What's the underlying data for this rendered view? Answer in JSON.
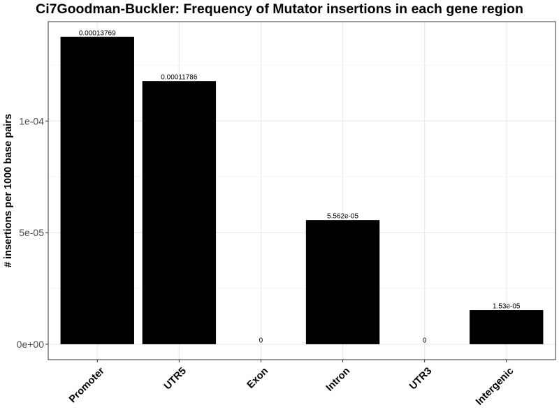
{
  "chart_data": {
    "type": "bar",
    "title": "Ci7Goodman-Buckler: Frequency of Mutator insertions in each gene region",
    "xlabel": "",
    "ylabel": "# insertions per 1000 base pairs",
    "categories": [
      "Promoter",
      "UTR5",
      "Exon",
      "Intron",
      "UTR3",
      "Intergenic"
    ],
    "values": [
      0.00013769,
      0.00011786,
      0,
      5.562e-05,
      0,
      1.53e-05
    ],
    "data_labels": [
      "0.00013769",
      "0.00011786",
      "0",
      "5.562e-05",
      "0",
      "1.53e-05"
    ],
    "ylim": [
      -6.9e-06,
      0.0001445
    ],
    "yticks": [
      0,
      5e-05,
      0.0001
    ],
    "ytick_labels": [
      "0e+00",
      "5e-05",
      "1e-04"
    ],
    "grid": true,
    "bar_color": "#000000"
  }
}
